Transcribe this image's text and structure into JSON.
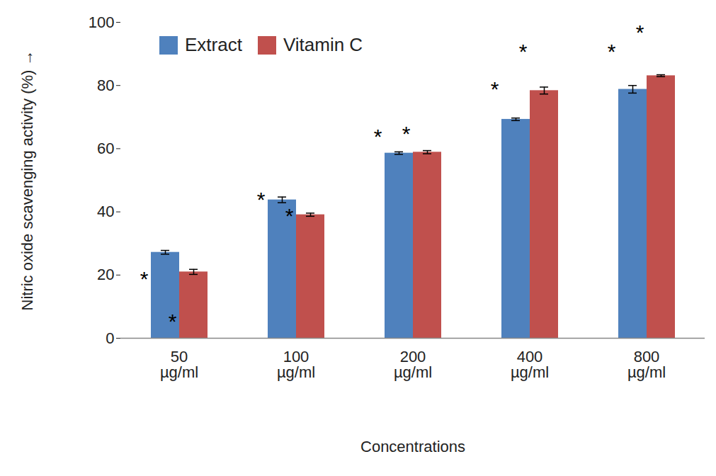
{
  "chart_data": {
    "type": "bar",
    "x_label": "Concentrations",
    "y_label": "Nitric oxide scavenging activity (%)",
    "categories": [
      "50 µg/ml",
      "100 µg/ml",
      "200 µg/ml",
      "400 µg/ml",
      "800 µg/ml"
    ],
    "series": [
      {
        "name": "Extract",
        "color": "#4f81bd",
        "values": [
          27.2,
          43.8,
          58.6,
          69.3,
          78.8
        ],
        "errors": [
          0.6,
          0.9,
          0.4,
          0.4,
          1.2
        ]
      },
      {
        "name": "Vitamin C",
        "color": "#c0504d",
        "values": [
          21.0,
          39.1,
          58.9,
          78.4,
          83.1
        ],
        "errors": [
          0.8,
          0.5,
          0.5,
          1.1,
          0.3
        ]
      }
    ],
    "annotations": [
      {
        "text": "*",
        "category": "50 µg/ml",
        "series": "Extract",
        "y": 20
      },
      {
        "text": "*",
        "category": "50 µg/ml",
        "series": "Vitamin C",
        "y": 6.5
      },
      {
        "text": "*",
        "category": "100 µg/ml",
        "series": "Extract",
        "y": 45
      },
      {
        "text": "*",
        "category": "100 µg/ml",
        "series": "Vitamin C",
        "y": 40
      },
      {
        "text": "*",
        "category": "200 µg/ml",
        "series": "Extract",
        "y": 65
      },
      {
        "text": "*",
        "category": "200 µg/ml",
        "series": "Vitamin C",
        "y": 66
      },
      {
        "text": "*",
        "category": "400 µg/ml",
        "series": "Extract",
        "y": 80
      },
      {
        "text": "*",
        "category": "400 µg/ml",
        "series": "Vitamin C",
        "y": 92
      },
      {
        "text": "*",
        "category": "800 µg/ml",
        "series": "Extract",
        "y": 92
      },
      {
        "text": "*",
        "category": "800 µg/ml",
        "series": "Vitamin C",
        "y": 98
      }
    ],
    "ylim": [
      0,
      100
    ],
    "yticks": [
      0,
      20,
      40,
      60,
      80,
      100
    ],
    "legend": "top-left",
    "grid": false
  }
}
